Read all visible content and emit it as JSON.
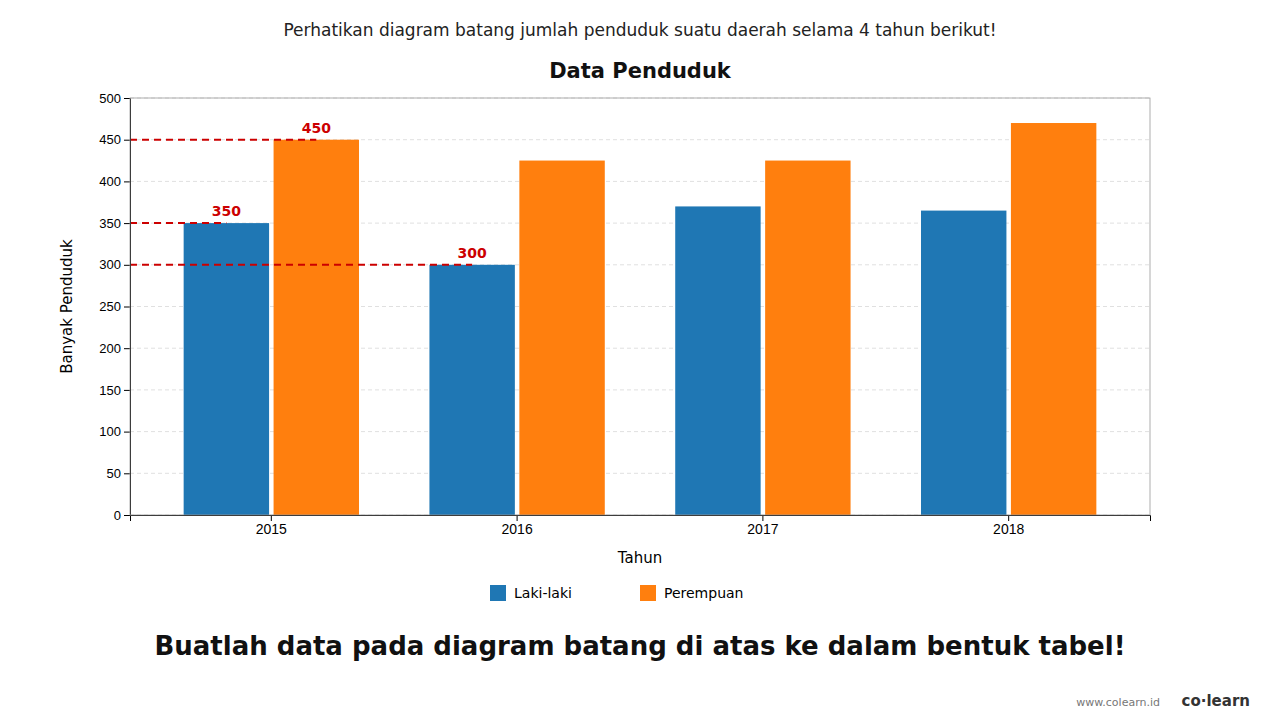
{
  "chart_data": {
    "type": "bar",
    "title": "Data Penduduk",
    "subtitle": "Perhatikan diagram batang jumlah penduduk suatu daerah selama 4 tahun berikut!",
    "caption": "Buatlah data pada diagram batang di atas ke dalam bentuk tabel!",
    "brand": "co·learn",
    "website": "www.colearn.id",
    "xlabel": "Tahun",
    "ylabel": "Banyak Penduduk",
    "categories": [
      "2015",
      "2016",
      "2017",
      "2018"
    ],
    "series": [
      {
        "name": "Laki-laki",
        "values": [
          350,
          300,
          370,
          365
        ]
      },
      {
        "name": "Perempuan",
        "values": [
          450,
          425,
          425,
          470
        ]
      }
    ],
    "ylim": [
      0,
      500
    ],
    "yticks": [
      0,
      50,
      100,
      150,
      200,
      250,
      300,
      350,
      400,
      450,
      500
    ],
    "grid": true,
    "legend": "bottom",
    "annotations": [
      {
        "label": "350",
        "value": 350,
        "category": "2015",
        "series": "Laki-laki",
        "color": "#cc0000"
      },
      {
        "label": "450",
        "value": 450,
        "category": "2015",
        "series": "Perempuan",
        "color": "#cc0000"
      },
      {
        "label": "300",
        "value": 300,
        "category": "2016",
        "series": "Laki-laki",
        "color": "#cc0000"
      }
    ]
  }
}
